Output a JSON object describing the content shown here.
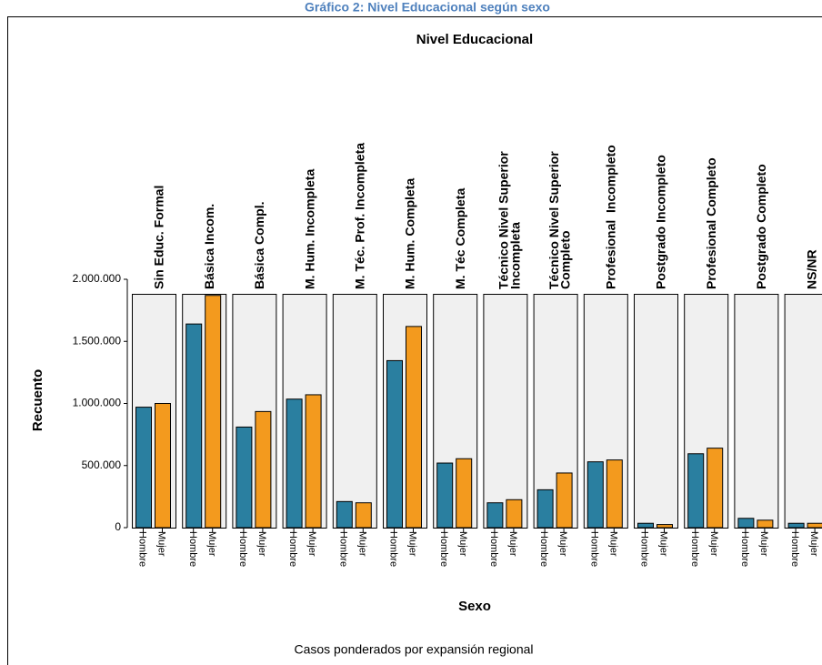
{
  "chart_data": {
    "type": "faceted-bar",
    "title": "Gráfico 2: Nivel Educacional según sexo",
    "facet_label": "Nivel Educacional",
    "x_label": "Sexo",
    "y_label": "Recuento",
    "footnote": "Casos ponderados por expansión regional",
    "categories": [
      "Hombre",
      "Mujer"
    ],
    "colors": [
      "#2a7fa0",
      "#f39a1e"
    ],
    "ylim": [
      0,
      2000000
    ],
    "yticks": [
      0,
      {
        "value": 500000,
        "label": "500.000"
      },
      {
        "value": 1000000,
        "label": "1.000.000"
      },
      {
        "value": 1500000,
        "label": "1.500.000"
      },
      {
        "value": 2000000,
        "label": "2.000.000"
      }
    ],
    "panels": [
      {
        "label": "Sin Educ. Formal",
        "values": [
          970000,
          1000000
        ]
      },
      {
        "label": "Básica Incom.",
        "values": [
          1640000,
          1870000
        ]
      },
      {
        "label": "Básica Compl.",
        "values": [
          810000,
          935000
        ]
      },
      {
        "label": "M. Hum. Incompleta",
        "values": [
          1035000,
          1070000
        ]
      },
      {
        "label": "M. Téc. Prof. Incompleta",
        "values": [
          210000,
          200000
        ]
      },
      {
        "label": "M. Hum. Completa",
        "values": [
          1345000,
          1620000
        ]
      },
      {
        "label": "M. Téc Completa",
        "values": [
          520000,
          555000
        ]
      },
      {
        "label": "Técnico Nivel Superior\nIncompleta",
        "values": [
          200000,
          225000
        ]
      },
      {
        "label": "Técnico Nivel Superior\nCompleto",
        "values": [
          305000,
          440000
        ]
      },
      {
        "label": "Profesional  Incompleto",
        "values": [
          530000,
          545000
        ]
      },
      {
        "label": "Postgrado Incompleto",
        "values": [
          35000,
          25000
        ]
      },
      {
        "label": "Profesional Completo",
        "values": [
          595000,
          640000
        ]
      },
      {
        "label": "Postgrado Completo",
        "values": [
          75000,
          60000
        ]
      },
      {
        "label": "NS/NR",
        "values": [
          35000,
          35000
        ]
      }
    ]
  }
}
